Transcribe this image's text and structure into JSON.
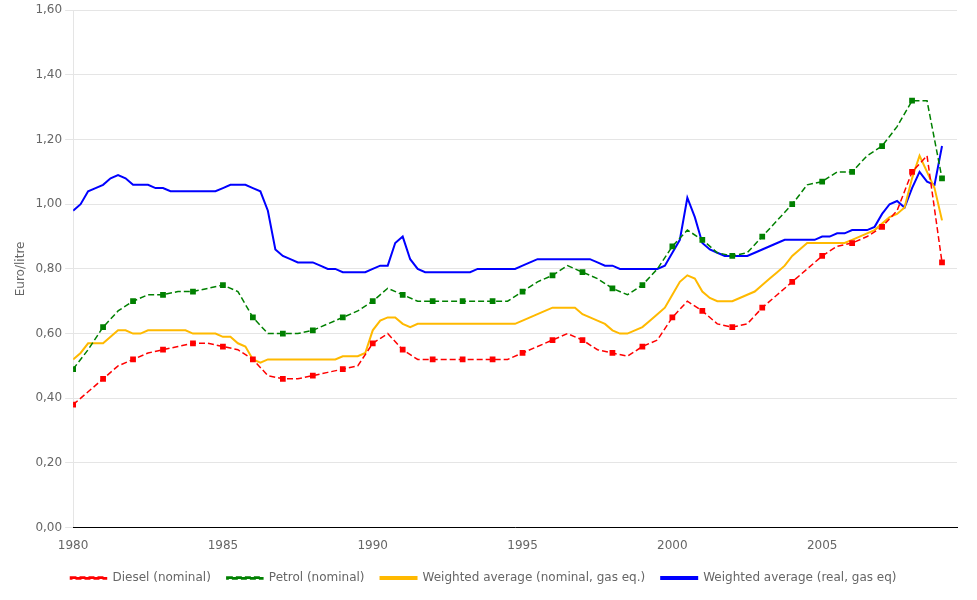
{
  "chart_data": {
    "type": "line",
    "y_label": "Euro/litre",
    "xlim": [
      1980,
      2009.5
    ],
    "xticks": [
      1980,
      1985,
      1990,
      1995,
      2000,
      2005
    ],
    "ylim": [
      0.0,
      1.6
    ],
    "yticks": [
      {
        "value": 0.0,
        "label": "0,00"
      },
      {
        "value": 0.2,
        "label": "0,20"
      },
      {
        "value": 0.4,
        "label": "0,40"
      },
      {
        "value": 0.6,
        "label": "0,60"
      },
      {
        "value": 0.8,
        "label": "0,80"
      },
      {
        "value": 1.0,
        "label": "1,00"
      },
      {
        "value": 1.2,
        "label": "1,20"
      },
      {
        "value": 1.4,
        "label": "1,40"
      },
      {
        "value": 1.6,
        "label": "1,60"
      }
    ],
    "grid": "y",
    "legend": "bottom",
    "series": [
      {
        "name": "Diesel (nominal)",
        "color": "#FF0000",
        "line_style": "dashed",
        "marker": "square",
        "x": [
          1980,
          1980.5,
          1981,
          1981.5,
          1982,
          1982.5,
          1983,
          1983.5,
          1984,
          1984.5,
          1985,
          1985.5,
          1986,
          1986.5,
          1987,
          1987.5,
          1988,
          1988.5,
          1989,
          1989.5,
          1990,
          1990.5,
          1991,
          1991.5,
          1992,
          1992.5,
          1993,
          1993.5,
          1994,
          1994.5,
          1995,
          1995.5,
          1996,
          1996.5,
          1997,
          1997.5,
          1998,
          1998.5,
          1999,
          1999.5,
          2000,
          2000.5,
          2001,
          2001.5,
          2002,
          2002.5,
          2003,
          2003.5,
          2004,
          2004.5,
          2005,
          2005.5,
          2006,
          2006.5,
          2007,
          2007.5,
          2008,
          2008.5,
          2009
        ],
        "values": [
          0.38,
          0.42,
          0.46,
          0.5,
          0.52,
          0.54,
          0.55,
          0.56,
          0.57,
          0.57,
          0.56,
          0.55,
          0.52,
          0.47,
          0.46,
          0.46,
          0.47,
          0.48,
          0.49,
          0.5,
          0.57,
          0.6,
          0.55,
          0.52,
          0.52,
          0.52,
          0.52,
          0.52,
          0.52,
          0.52,
          0.54,
          0.56,
          0.58,
          0.6,
          0.58,
          0.55,
          0.54,
          0.53,
          0.56,
          0.58,
          0.65,
          0.7,
          0.67,
          0.63,
          0.62,
          0.63,
          0.68,
          0.72,
          0.76,
          0.8,
          0.84,
          0.87,
          0.88,
          0.9,
          0.93,
          0.98,
          1.1,
          1.15,
          0.82
        ]
      },
      {
        "name": "Petrol (nominal)",
        "color": "#008000",
        "line_style": "dashed",
        "marker": "square",
        "x": [
          1980,
          1980.5,
          1981,
          1981.5,
          1982,
          1982.5,
          1983,
          1983.5,
          1984,
          1984.5,
          1985,
          1985.5,
          1986,
          1986.5,
          1987,
          1987.5,
          1988,
          1988.5,
          1989,
          1989.5,
          1990,
          1990.5,
          1991,
          1991.5,
          1992,
          1992.5,
          1993,
          1993.5,
          1994,
          1994.5,
          1995,
          1995.5,
          1996,
          1996.5,
          1997,
          1997.5,
          1998,
          1998.5,
          1999,
          1999.5,
          2000,
          2000.5,
          2001,
          2001.5,
          2002,
          2002.5,
          2003,
          2003.5,
          2004,
          2004.5,
          2005,
          2005.5,
          2006,
          2006.5,
          2007,
          2007.5,
          2008,
          2008.5,
          2009
        ],
        "values": [
          0.49,
          0.55,
          0.62,
          0.67,
          0.7,
          0.72,
          0.72,
          0.73,
          0.73,
          0.74,
          0.75,
          0.73,
          0.65,
          0.6,
          0.6,
          0.6,
          0.61,
          0.63,
          0.65,
          0.67,
          0.7,
          0.74,
          0.72,
          0.7,
          0.7,
          0.7,
          0.7,
          0.7,
          0.7,
          0.7,
          0.73,
          0.76,
          0.78,
          0.81,
          0.79,
          0.77,
          0.74,
          0.72,
          0.75,
          0.8,
          0.87,
          0.92,
          0.89,
          0.85,
          0.84,
          0.85,
          0.9,
          0.95,
          1.0,
          1.06,
          1.07,
          1.1,
          1.1,
          1.15,
          1.18,
          1.24,
          1.32,
          1.32,
          1.08
        ]
      },
      {
        "name": "Weighted average (nominal, gas eq.)",
        "color": "#FFB900",
        "line_style": "solid",
        "x": [
          1980,
          1980.25,
          1980.5,
          1980.75,
          1981,
          1981.25,
          1981.5,
          1981.75,
          1982,
          1982.25,
          1982.5,
          1982.75,
          1983,
          1983.25,
          1983.5,
          1983.75,
          1984,
          1984.25,
          1984.5,
          1984.75,
          1985,
          1985.25,
          1985.5,
          1985.75,
          1986,
          1986.25,
          1986.5,
          1986.75,
          1987,
          1987.25,
          1987.5,
          1987.75,
          1988,
          1988.25,
          1988.5,
          1988.75,
          1989,
          1989.25,
          1989.5,
          1989.75,
          1990,
          1990.25,
          1990.5,
          1990.75,
          1991,
          1991.25,
          1991.5,
          1991.75,
          1992,
          1992.25,
          1992.5,
          1992.75,
          1993,
          1993.25,
          1993.5,
          1993.75,
          1994,
          1994.25,
          1994.5,
          1994.75,
          1995,
          1995.25,
          1995.5,
          1995.75,
          1996,
          1996.25,
          1996.5,
          1996.75,
          1997,
          1997.25,
          1997.5,
          1997.75,
          1998,
          1998.25,
          1998.5,
          1998.75,
          1999,
          1999.25,
          1999.5,
          1999.75,
          2000,
          2000.25,
          2000.5,
          2000.75,
          2001,
          2001.25,
          2001.5,
          2001.75,
          2002,
          2002.25,
          2002.5,
          2002.75,
          2003,
          2003.25,
          2003.5,
          2003.75,
          2004,
          2004.25,
          2004.5,
          2004.75,
          2005,
          2005.25,
          2005.5,
          2005.75,
          2006,
          2006.25,
          2006.5,
          2006.75,
          2007,
          2007.25,
          2007.5,
          2007.75,
          2008,
          2008.25,
          2008.5,
          2008.75,
          2009
        ],
        "values": [
          0.52,
          0.54,
          0.57,
          0.57,
          0.57,
          0.59,
          0.61,
          0.61,
          0.6,
          0.6,
          0.61,
          0.61,
          0.61,
          0.61,
          0.61,
          0.61,
          0.6,
          0.6,
          0.6,
          0.6,
          0.59,
          0.59,
          0.57,
          0.56,
          0.52,
          0.51,
          0.52,
          0.52,
          0.52,
          0.52,
          0.52,
          0.52,
          0.52,
          0.52,
          0.52,
          0.52,
          0.53,
          0.53,
          0.53,
          0.54,
          0.61,
          0.64,
          0.65,
          0.65,
          0.63,
          0.62,
          0.63,
          0.63,
          0.63,
          0.63,
          0.63,
          0.63,
          0.63,
          0.63,
          0.63,
          0.63,
          0.63,
          0.63,
          0.63,
          0.63,
          0.64,
          0.65,
          0.66,
          0.67,
          0.68,
          0.68,
          0.68,
          0.68,
          0.66,
          0.65,
          0.64,
          0.63,
          0.61,
          0.6,
          0.6,
          0.61,
          0.62,
          0.64,
          0.66,
          0.68,
          0.72,
          0.76,
          0.78,
          0.77,
          0.73,
          0.71,
          0.7,
          0.7,
          0.7,
          0.71,
          0.72,
          0.73,
          0.75,
          0.77,
          0.79,
          0.81,
          0.84,
          0.86,
          0.88,
          0.88,
          0.88,
          0.88,
          0.88,
          0.88,
          0.89,
          0.9,
          0.91,
          0.92,
          0.94,
          0.96,
          0.97,
          0.99,
          1.08,
          1.15,
          1.1,
          1.05,
          0.95
        ]
      },
      {
        "name": "Weighted average (real, gas eq)",
        "color": "#0000FF",
        "line_style": "solid",
        "x": [
          1980,
          1980.25,
          1980.5,
          1980.75,
          1981,
          1981.25,
          1981.5,
          1981.75,
          1982,
          1982.25,
          1982.5,
          1982.75,
          1983,
          1983.25,
          1983.5,
          1983.75,
          1984,
          1984.25,
          1984.5,
          1984.75,
          1985,
          1985.25,
          1985.5,
          1985.75,
          1986,
          1986.25,
          1986.5,
          1986.75,
          1987,
          1987.25,
          1987.5,
          1987.75,
          1988,
          1988.25,
          1988.5,
          1988.75,
          1989,
          1989.25,
          1989.5,
          1989.75,
          1990,
          1990.25,
          1990.5,
          1990.75,
          1991,
          1991.25,
          1991.5,
          1991.75,
          1992,
          1992.25,
          1992.5,
          1992.75,
          1993,
          1993.25,
          1993.5,
          1993.75,
          1994,
          1994.25,
          1994.5,
          1994.75,
          1995,
          1995.25,
          1995.5,
          1995.75,
          1996,
          1996.25,
          1996.5,
          1996.75,
          1997,
          1997.25,
          1997.5,
          1997.75,
          1998,
          1998.25,
          1998.5,
          1998.75,
          1999,
          1999.25,
          1999.5,
          1999.75,
          2000,
          2000.25,
          2000.5,
          2000.75,
          2001,
          2001.25,
          2001.5,
          2001.75,
          2002,
          2002.25,
          2002.5,
          2002.75,
          2003,
          2003.25,
          2003.5,
          2003.75,
          2004,
          2004.25,
          2004.5,
          2004.75,
          2005,
          2005.25,
          2005.5,
          2005.75,
          2006,
          2006.25,
          2006.5,
          2006.75,
          2007,
          2007.25,
          2007.5,
          2007.75,
          2008,
          2008.25,
          2008.5,
          2008.75,
          2009
        ],
        "values": [
          0.98,
          1.0,
          1.04,
          1.05,
          1.06,
          1.08,
          1.09,
          1.08,
          1.06,
          1.06,
          1.06,
          1.05,
          1.05,
          1.04,
          1.04,
          1.04,
          1.04,
          1.04,
          1.04,
          1.04,
          1.05,
          1.06,
          1.06,
          1.06,
          1.05,
          1.04,
          0.98,
          0.86,
          0.84,
          0.83,
          0.82,
          0.82,
          0.82,
          0.81,
          0.8,
          0.8,
          0.79,
          0.79,
          0.79,
          0.79,
          0.8,
          0.81,
          0.81,
          0.88,
          0.9,
          0.83,
          0.8,
          0.79,
          0.79,
          0.79,
          0.79,
          0.79,
          0.79,
          0.79,
          0.8,
          0.8,
          0.8,
          0.8,
          0.8,
          0.8,
          0.81,
          0.82,
          0.83,
          0.83,
          0.83,
          0.83,
          0.83,
          0.83,
          0.83,
          0.83,
          0.82,
          0.81,
          0.81,
          0.8,
          0.8,
          0.8,
          0.8,
          0.8,
          0.8,
          0.81,
          0.85,
          0.89,
          1.02,
          0.96,
          0.88,
          0.86,
          0.85,
          0.84,
          0.84,
          0.84,
          0.84,
          0.85,
          0.86,
          0.87,
          0.88,
          0.89,
          0.89,
          0.89,
          0.89,
          0.89,
          0.9,
          0.9,
          0.91,
          0.91,
          0.92,
          0.92,
          0.92,
          0.93,
          0.97,
          1.0,
          1.01,
          0.99,
          1.05,
          1.1,
          1.07,
          1.06,
          1.18
        ]
      }
    ]
  }
}
